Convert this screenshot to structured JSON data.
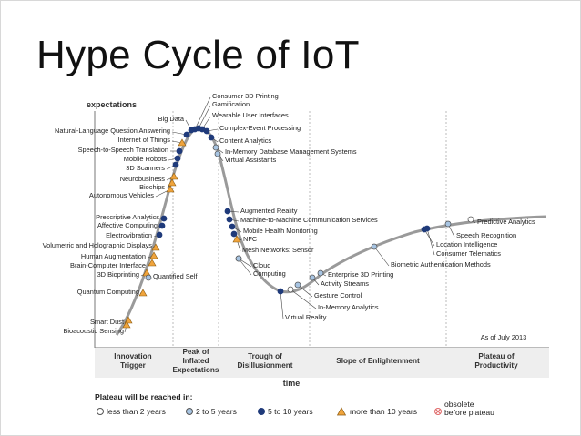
{
  "title": "Hype Cycle of IoT",
  "axis": {
    "y_label": "expectations",
    "x_label": "time"
  },
  "as_of": "As of July 2013",
  "phases": [
    {
      "line1": "Innovation",
      "line2": "Trigger",
      "line3": ""
    },
    {
      "line1": "Peak of",
      "line2": "Inflated",
      "line3": "Expectations"
    },
    {
      "line1": "Trough of",
      "line2": "Disillusionment",
      "line3": ""
    },
    {
      "line1": "Slope of Enlightenment",
      "line2": "",
      "line3": ""
    },
    {
      "line1": "Plateau of",
      "line2": "Productivity",
      "line3": ""
    }
  ],
  "legend": {
    "title": "Plateau will be reached in:",
    "items": [
      {
        "label": "less than 2 years",
        "symbol": "circle-white"
      },
      {
        "label": "2 to 5 years",
        "symbol": "circle-lightblue"
      },
      {
        "label": "5 to 10 years",
        "symbol": "circle-navy"
      },
      {
        "label": "more than 10 years",
        "symbol": "triangle-orange"
      },
      {
        "label": "obsolete",
        "label2": "before plateau",
        "symbol": "circle-cross-red"
      }
    ]
  },
  "technologies": [
    {
      "label": "Consumer 3D Printing",
      "marker": "navy"
    },
    {
      "label": "Gamification",
      "marker": "navy"
    },
    {
      "label": "Wearable User Interfaces",
      "marker": "navy"
    },
    {
      "label": "Complex-Event Processing",
      "marker": "navy"
    },
    {
      "label": "Content Analytics",
      "marker": "navy"
    },
    {
      "label": "In-Memory Database Management Systems",
      "marker": "lightblue"
    },
    {
      "label": "Virtual Assistants",
      "marker": "lightblue"
    },
    {
      "label": "Big Data",
      "marker": "navy"
    },
    {
      "label": "Natural-Language Question Answering",
      "marker": "navy"
    },
    {
      "label": "Internet of Things",
      "marker": "orange"
    },
    {
      "label": "Speech-to-Speech Translation",
      "marker": "navy"
    },
    {
      "label": "Mobile Robots",
      "marker": "navy"
    },
    {
      "label": "3D Scanners",
      "marker": "navy"
    },
    {
      "label": "Neurobusiness",
      "marker": "orange"
    },
    {
      "label": "Biochips",
      "marker": "orange"
    },
    {
      "label": "Autonomous Vehicles",
      "marker": "orange"
    },
    {
      "label": "Prescriptive Analytics",
      "marker": "navy"
    },
    {
      "label": "Affective Computing",
      "marker": "navy"
    },
    {
      "label": "Electrovibration",
      "marker": "navy"
    },
    {
      "label": "Volumetric and Holographic Displays",
      "marker": "orange"
    },
    {
      "label": "Human Augmentation",
      "marker": "orange"
    },
    {
      "label": "Brain-Computer Interface",
      "marker": "orange"
    },
    {
      "label": "3D Bioprinting",
      "marker": "orange"
    },
    {
      "label": "Quantified Self",
      "marker": "lightblue"
    },
    {
      "label": "Quantum Computing",
      "marker": "orange"
    },
    {
      "label": "Smart Dust",
      "marker": "orange"
    },
    {
      "label": "Bioacoustic Sensing",
      "marker": "orange"
    },
    {
      "label": "Augmented Reality",
      "marker": "navy"
    },
    {
      "label": "Machine-to-Machine Communication Services",
      "marker": "navy"
    },
    {
      "label": "Mobile Health Monitoring",
      "marker": "navy"
    },
    {
      "label": "NFC",
      "marker": "navy"
    },
    {
      "label": "Mesh Networks: Sensor",
      "marker": "orange"
    },
    {
      "label": "Cloud",
      "marker": "lightblue"
    },
    {
      "label": "Computing",
      "marker": "lightblue"
    },
    {
      "label": "In-Memory Analytics",
      "marker": "white"
    },
    {
      "label": "Gesture Control",
      "marker": "lightblue"
    },
    {
      "label": "Virtual Reality",
      "marker": "navy"
    },
    {
      "label": "Enterprise 3D Printing",
      "marker": "lightblue"
    },
    {
      "label": "Activity Streams",
      "marker": "lightblue"
    },
    {
      "label": "Biometric Authentication Methods",
      "marker": "lightblue"
    },
    {
      "label": "Location Intelligence",
      "marker": "navy"
    },
    {
      "label": "Consumer Telematics",
      "marker": "navy"
    },
    {
      "label": "Speech Recognition",
      "marker": "lightblue"
    },
    {
      "label": "Predictive Analytics",
      "marker": "white"
    }
  ],
  "colors": {
    "navy": "#1f3a7a",
    "lightblue": "#a7c4e2",
    "orange": "#f0a43c",
    "white": "#ffffff",
    "curve": "#9a9a9a",
    "obsolete": "#e06a6a"
  }
}
